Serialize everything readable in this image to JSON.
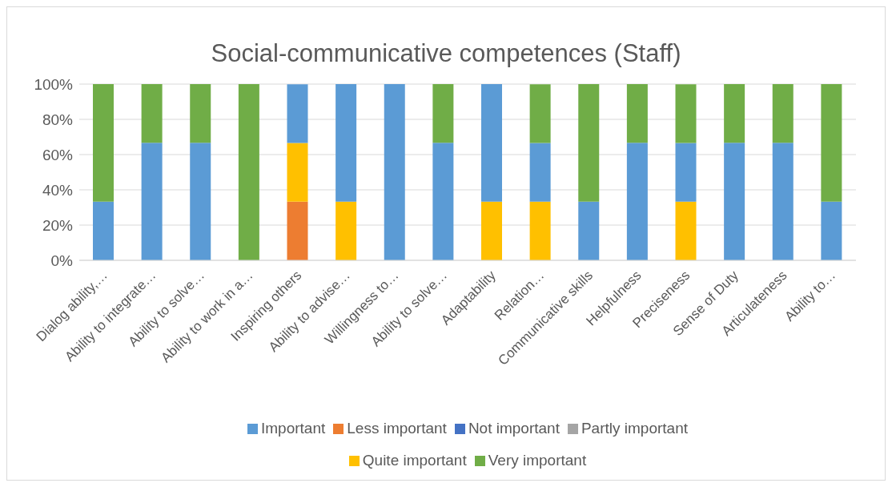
{
  "chart_data": {
    "type": "bar",
    "stacked": true,
    "title": "Social-communicative competences (Staff)",
    "categories": [
      "Dialog ability,…",
      "Ability to integrate…",
      "Ability to solve…",
      "Ability to work in a…",
      "Inspiring others",
      "Ability to advise…",
      "Willingness to…",
      "Ability to solve…",
      "Adaptability",
      "Relation…",
      "Communicative skills",
      "Helpfulness",
      "Preciseness",
      "Sense of Duty",
      "Articulateness",
      "Ability to…"
    ],
    "series": [
      {
        "name": "Not important",
        "color": "#4472c4",
        "values": [
          0,
          0,
          0,
          0,
          0,
          0,
          0,
          0,
          0,
          0,
          0,
          0,
          0,
          0,
          0,
          0
        ]
      },
      {
        "name": "Less important",
        "color": "#ed7d31",
        "values": [
          0,
          0,
          0,
          0,
          33.3,
          0,
          0,
          0,
          0,
          0,
          0,
          0,
          0,
          0,
          0,
          0
        ]
      },
      {
        "name": "Partly important",
        "color": "#a5a5a5",
        "values": [
          0,
          0,
          0,
          0,
          0,
          0,
          0,
          0,
          0,
          0,
          0,
          0,
          0,
          0,
          0,
          0
        ]
      },
      {
        "name": "Quite important",
        "color": "#ffc000",
        "values": [
          0,
          0,
          0,
          0,
          33.3,
          33.3,
          0,
          0,
          33.3,
          33.3,
          0,
          0,
          33.3,
          0,
          0,
          0
        ]
      },
      {
        "name": "Important",
        "color": "#5b9bd5",
        "values": [
          33.3,
          66.7,
          66.7,
          0,
          33.3,
          66.7,
          100,
          66.7,
          66.7,
          33.3,
          33.3,
          66.7,
          33.3,
          66.7,
          66.7,
          33.3
        ]
      },
      {
        "name": "Very important",
        "color": "#70ad47",
        "values": [
          66.7,
          33.3,
          33.3,
          100,
          0,
          0,
          0,
          33.3,
          0,
          33.3,
          66.7,
          33.3,
          33.3,
          33.3,
          33.3,
          66.7
        ]
      }
    ],
    "ylim": [
      0,
      100
    ],
    "yticks": [
      {
        "value": 0,
        "label": "0%"
      },
      {
        "value": 20,
        "label": "20%"
      },
      {
        "value": 40,
        "label": "40%"
      },
      {
        "value": 60,
        "label": "60%"
      },
      {
        "value": 80,
        "label": "80%"
      },
      {
        "value": 100,
        "label": "100%"
      }
    ],
    "grid": "y",
    "legend": "bottom"
  }
}
